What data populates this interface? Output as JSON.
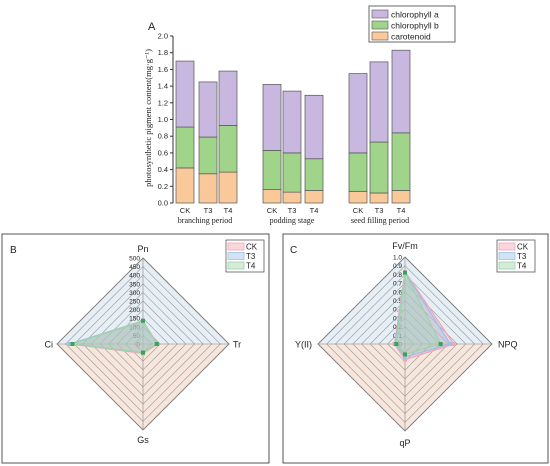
{
  "chart_data": [
    {
      "type": "bar",
      "panel_label": "A",
      "stacked": true,
      "ylabel": "photosynthetic pigment content(mg·g⁻¹)",
      "ylim": [
        0,
        2.0
      ],
      "yticks": [
        "0.0",
        "0.2",
        "0.4",
        "0.6",
        "0.8",
        "1.0",
        "1.2",
        "1.4",
        "1.6",
        "1.8",
        "2.0"
      ],
      "categories": [
        "CK",
        "T3",
        "T4",
        "CK",
        "T3",
        "T4",
        "CK",
        "T3",
        "T4"
      ],
      "groups": [
        "branching period",
        "podding stage",
        "seed filling period"
      ],
      "series": [
        {
          "name": "carotenoid",
          "color": "#f9c99a",
          "values": [
            0.42,
            0.35,
            0.37,
            0.16,
            0.13,
            0.15,
            0.14,
            0.12,
            0.15
          ]
        },
        {
          "name": "chlorophyll b",
          "color": "#9fd48a",
          "values": [
            0.49,
            0.44,
            0.56,
            0.47,
            0.47,
            0.38,
            0.46,
            0.61,
            0.69
          ]
        },
        {
          "name": "chlorophyll a",
          "color": "#c8b8df",
          "values": [
            0.79,
            0.66,
            0.65,
            0.79,
            0.74,
            0.76,
            0.95,
            0.96,
            0.99
          ]
        }
      ],
      "legend_order": [
        "chlorophyll a",
        "chlorophyll b",
        "carotenoid"
      ],
      "legend_position": "top-right"
    },
    {
      "type": "radar",
      "panel_label": "B",
      "axes": [
        "Pn",
        "Tr",
        "Gs",
        "Ci"
      ],
      "scale_ticks": [
        "0",
        "50",
        "100",
        "150",
        "200",
        "250",
        "300",
        "350",
        "400",
        "450",
        "500"
      ],
      "max": 500,
      "series": [
        {
          "name": "CK",
          "color": "#f4a6b5",
          "values": [
            130,
            85,
            55,
            420
          ]
        },
        {
          "name": "T3",
          "color": "#9cc2e6",
          "values": [
            135,
            80,
            50,
            425
          ]
        },
        {
          "name": "T4",
          "color": "#9fd4a8",
          "values": [
            135,
            80,
            50,
            410
          ]
        }
      ],
      "legend_position": "top-right"
    },
    {
      "type": "radar",
      "panel_label": "C",
      "axes": [
        "Fv/Fm",
        "NPQ",
        "qP",
        "Y(II)"
      ],
      "scale_ticks": [
        "0",
        "0.1",
        "0.2",
        "0.3",
        "0.4",
        "0.5",
        "0.6",
        "0.7",
        "0.8",
        "0.9",
        "1.0"
      ],
      "max": 1.0,
      "series": [
        {
          "name": "CK",
          "color": "#f4a6b5",
          "values": [
            0.83,
            0.56,
            0.18,
            0.12
          ]
        },
        {
          "name": "T3",
          "color": "#9cc2e6",
          "values": [
            0.82,
            0.52,
            0.15,
            0.11
          ]
        },
        {
          "name": "T4",
          "color": "#9fd4a8",
          "values": [
            0.82,
            0.41,
            0.12,
            0.1
          ]
        }
      ],
      "legend_position": "top-right"
    }
  ]
}
